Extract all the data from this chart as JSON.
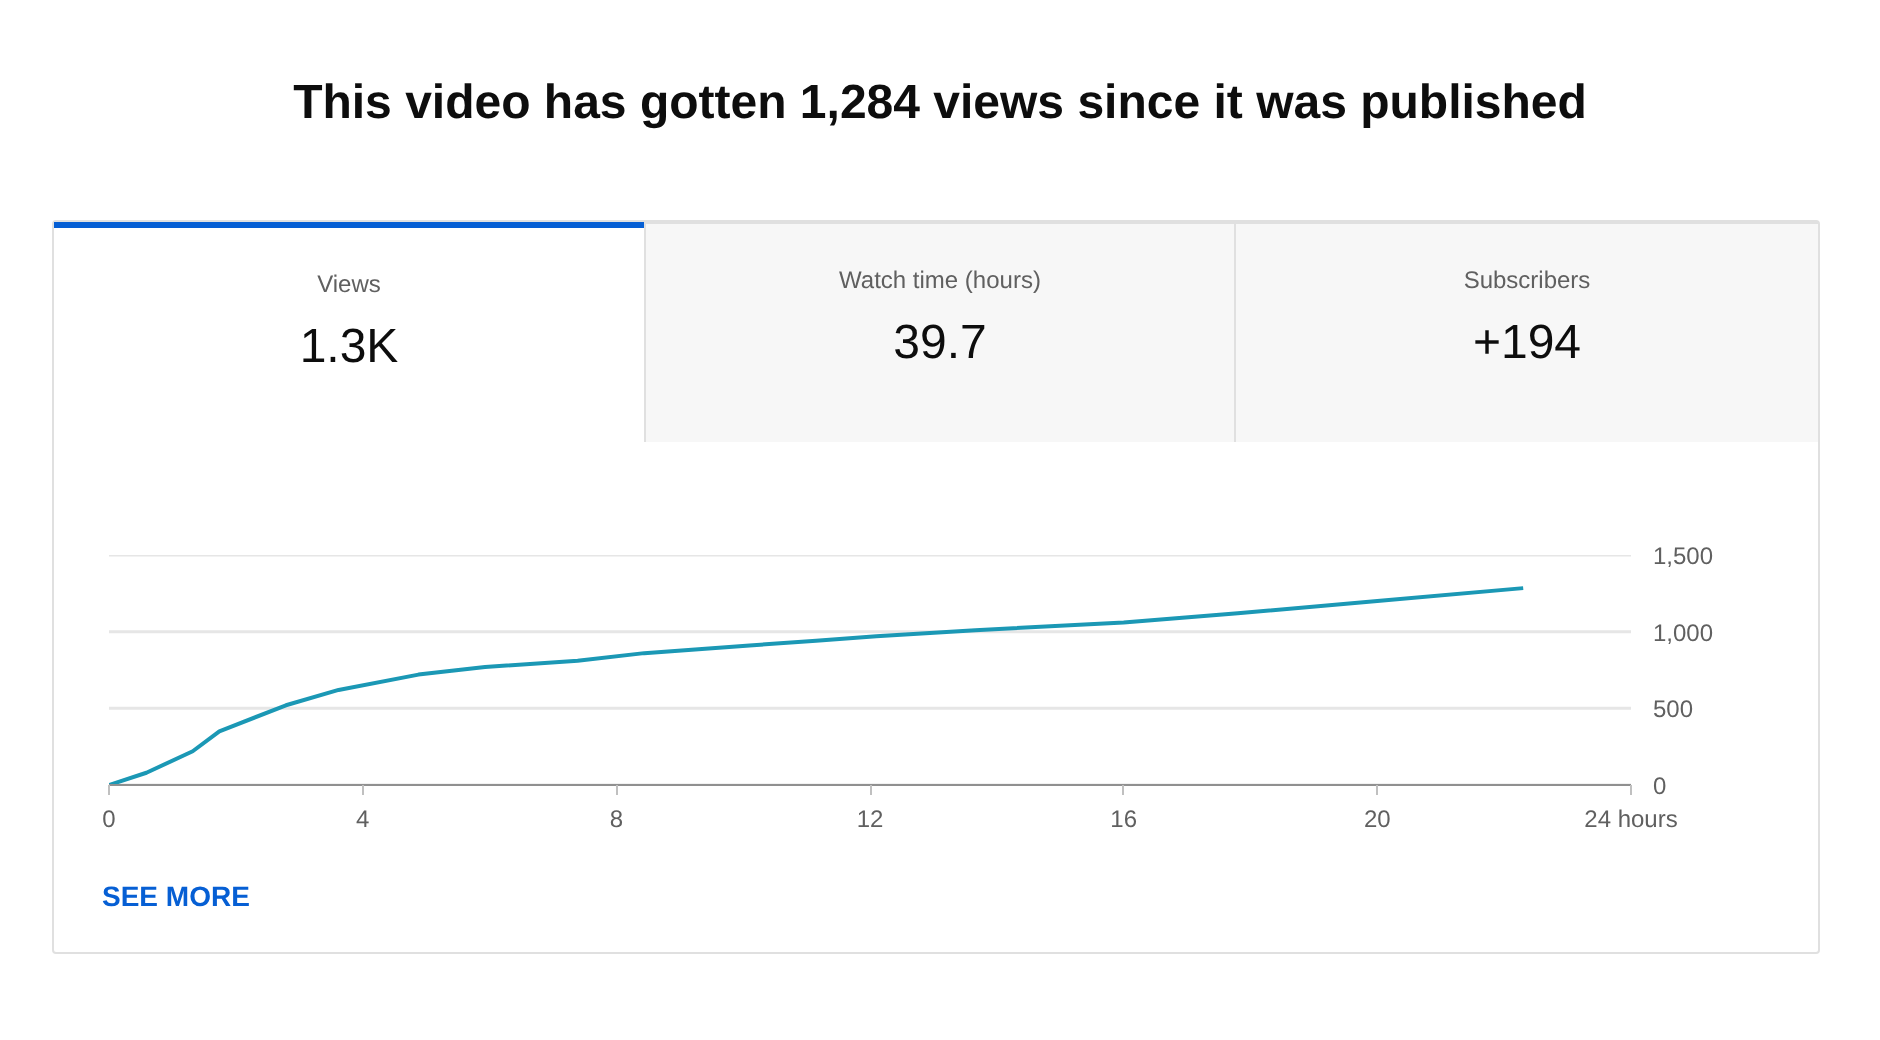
{
  "chart_data": {
    "type": "line",
    "title": "This video has gotten 1,284 views since it was published",
    "annotations": [
      "Views",
      "1.3K",
      "Watch time (hours)",
      "39.7",
      "Subscribers",
      "+194",
      "SEE MORE"
    ],
    "x": [
      0,
      0.59,
      1.32,
      1.74,
      2.79,
      3.62,
      4.88,
      5.93,
      7.39,
      8.44,
      10.1,
      11.15,
      12.1,
      13.66,
      16,
      17.8,
      20,
      22.3
    ],
    "series": [
      {
        "color": "#1b98b5",
        "values": [
          0,
          80,
          220,
          350,
          520,
          620,
          720,
          770,
          810,
          860,
          910,
          940,
          970,
          1010,
          1060,
          1120,
          1200,
          1284
        ]
      }
    ],
    "xlim": [
      0,
      24
    ],
    "xticks": [
      0,
      4,
      8,
      12,
      16,
      20,
      {
        "value": 24,
        "label": "24 hours"
      }
    ],
    "ylim": [
      0,
      1500
    ],
    "yticks": [
      0,
      500,
      {
        "value": 1000,
        "label": "1,000"
      },
      {
        "value": 1500,
        "label": "1,500"
      }
    ],
    "grid": "y",
    "marker": "none",
    "line_style": "solid"
  }
}
